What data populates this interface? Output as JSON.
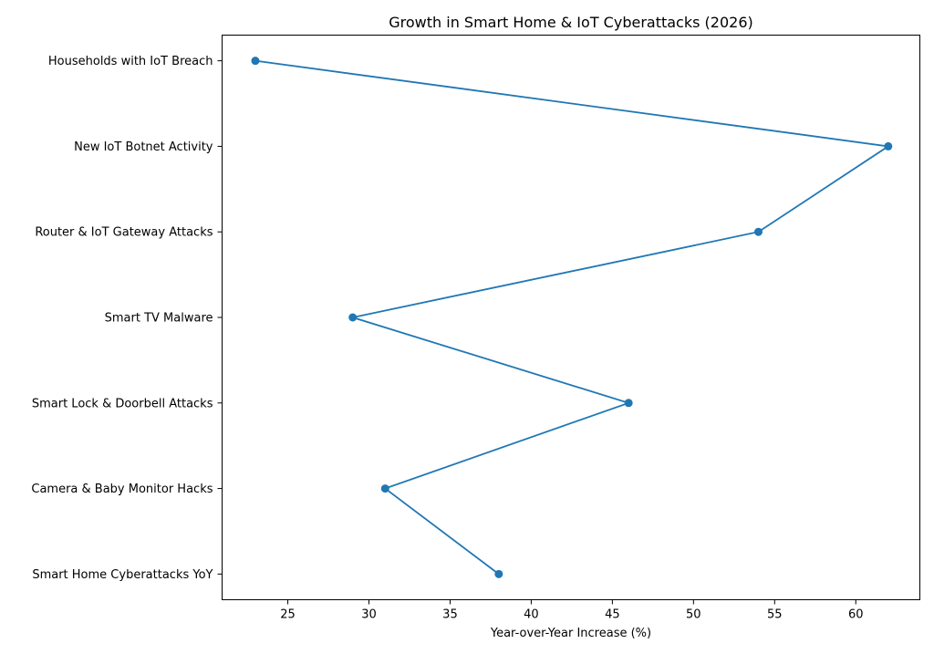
{
  "chart_data": {
    "type": "line",
    "title": "Growth in Smart Home & IoT Cyberattacks (2026)",
    "xlabel": "Year-over-Year Increase (%)",
    "ylabel": "",
    "categories": [
      "Smart Home Cyberattacks YoY",
      "Camera & Baby Monitor Hacks",
      "Smart Lock & Doorbell Attacks",
      "Smart TV Malware",
      "Router & IoT Gateway Attacks",
      "New IoT Botnet Activity",
      "Households with IoT Breach"
    ],
    "values": [
      38,
      31,
      46,
      29,
      54,
      62,
      23
    ],
    "xlim": [
      20.95,
      63.95
    ],
    "xticks": [
      25,
      30,
      35,
      40,
      45,
      50,
      55,
      60
    ],
    "grid": false,
    "marker": "circle",
    "color": "#1f77b4"
  }
}
